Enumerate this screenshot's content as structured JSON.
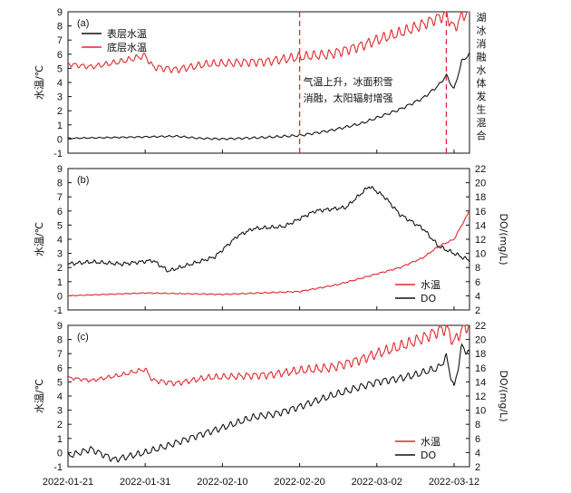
{
  "chart_data": [
    {
      "panel": "(a)",
      "type": "line",
      "ylabel": "水温/℃",
      "ylim": [
        -1,
        9
      ],
      "yticks": [
        -1,
        0,
        1,
        2,
        3,
        4,
        5,
        6,
        7,
        8,
        9
      ],
      "x_range": [
        "2022-01-21",
        "2022-03-14"
      ],
      "legend": "top-left",
      "series": [
        {
          "name": "表层水温",
          "color": "#111111",
          "axis": "left",
          "x": [
            "2022-01-21",
            "2022-01-26",
            "2022-01-31",
            "2022-02-04",
            "2022-02-07",
            "2022-02-10",
            "2022-02-15",
            "2022-02-20",
            "2022-02-24",
            "2022-02-28",
            "2022-03-02",
            "2022-03-05",
            "2022-03-08",
            "2022-03-10",
            "2022-03-11",
            "2022-03-12",
            "2022-03-13",
            "2022-03-14"
          ],
          "values": [
            0.05,
            0.1,
            0.15,
            0.2,
            0.05,
            0.0,
            0.1,
            0.25,
            0.6,
            1.1,
            1.5,
            2.1,
            2.9,
            3.8,
            4.5,
            3.5,
            5.5,
            6.0
          ]
        },
        {
          "name": "底层水温",
          "color": "#e0262b",
          "axis": "left",
          "x": [
            "2022-01-21",
            "2022-01-24",
            "2022-01-28",
            "2022-01-31",
            "2022-02-01",
            "2022-02-04",
            "2022-02-08",
            "2022-02-12",
            "2022-02-16",
            "2022-02-20",
            "2022-02-24",
            "2022-02-28",
            "2022-03-02",
            "2022-03-05",
            "2022-03-08",
            "2022-03-10",
            "2022-03-11",
            "2022-03-12",
            "2022-03-13",
            "2022-03-14"
          ],
          "values": [
            5.3,
            5.1,
            5.5,
            5.9,
            5.1,
            4.9,
            5.3,
            5.4,
            5.5,
            5.8,
            6.0,
            6.6,
            7.0,
            7.5,
            8.1,
            8.6,
            8.8,
            7.8,
            8.7,
            9.0
          ]
        }
      ],
      "annotations": [
        {
          "x": "2022-02-20",
          "text_lines": [
            "气温上升，冰面积雪",
            "消融，太阳辐射增强"
          ]
        },
        {
          "x": "2022-03-11",
          "text": "湖冰消融水体发生混合"
        }
      ]
    },
    {
      "panel": "(b)",
      "type": "line",
      "ylabel": "水温/℃",
      "y2label": "DO/(mg/L)",
      "ylim": [
        -1,
        9
      ],
      "yticks": [
        -1,
        0,
        1,
        2,
        3,
        4,
        5,
        6,
        7,
        8,
        9
      ],
      "y2lim": [
        2,
        22
      ],
      "y2ticks": [
        2,
        4,
        6,
        8,
        10,
        12,
        14,
        16,
        18,
        20,
        22
      ],
      "x_range": [
        "2022-01-21",
        "2022-03-14"
      ],
      "legend": "bottom-right",
      "series": [
        {
          "name": "水温",
          "color": "#e0262b",
          "axis": "left",
          "x": [
            "2022-01-21",
            "2022-01-31",
            "2022-02-10",
            "2022-02-20",
            "2022-02-25",
            "2022-03-01",
            "2022-03-05",
            "2022-03-08",
            "2022-03-10",
            "2022-03-12",
            "2022-03-13",
            "2022-03-14"
          ],
          "values": [
            0.0,
            0.2,
            0.1,
            0.3,
            0.8,
            1.4,
            2.0,
            2.7,
            3.5,
            4.0,
            5.0,
            6.0
          ]
        },
        {
          "name": "DO",
          "color": "#111111",
          "axis": "right",
          "x": [
            "2022-01-21",
            "2022-01-24",
            "2022-01-28",
            "2022-02-01",
            "2022-02-03",
            "2022-02-06",
            "2022-02-09",
            "2022-02-12",
            "2022-02-14",
            "2022-02-18",
            "2022-02-22",
            "2022-02-26",
            "2022-03-01",
            "2022-03-03",
            "2022-03-05",
            "2022-03-08",
            "2022-03-10",
            "2022-03-12",
            "2022-03-14"
          ],
          "values": [
            8.5,
            8.8,
            8.5,
            9.0,
            7.5,
            8.5,
            9.5,
            12.5,
            13.5,
            13.8,
            16.0,
            16.5,
            19.5,
            18.0,
            15.5,
            13.5,
            11.0,
            10.0,
            9.0
          ]
        }
      ]
    },
    {
      "panel": "(c)",
      "type": "line",
      "ylabel": "水温/℃",
      "y2label": "DO/(mg/L)",
      "ylim": [
        -1,
        9
      ],
      "yticks": [
        -1,
        0,
        1,
        2,
        3,
        4,
        5,
        6,
        7,
        8,
        9
      ],
      "y2lim": [
        2,
        22
      ],
      "y2ticks": [
        2,
        4,
        6,
        8,
        10,
        12,
        14,
        16,
        18,
        20,
        22
      ],
      "x_range": [
        "2022-01-21",
        "2022-03-14"
      ],
      "xticks": [
        "2022-01-21",
        "2022-01-31",
        "2022-02-10",
        "2022-02-20",
        "2022-03-02",
        "2022-03-12"
      ],
      "legend": "bottom-right",
      "series": [
        {
          "name": "水温",
          "color": "#e0262b",
          "axis": "left",
          "x": [
            "2022-01-21",
            "2022-01-24",
            "2022-01-28",
            "2022-01-31",
            "2022-02-01",
            "2022-02-04",
            "2022-02-08",
            "2022-02-12",
            "2022-02-16",
            "2022-02-20",
            "2022-02-24",
            "2022-02-28",
            "2022-03-02",
            "2022-03-05",
            "2022-03-08",
            "2022-03-10",
            "2022-03-11",
            "2022-03-12",
            "2022-03-13",
            "2022-03-14"
          ],
          "values": [
            5.3,
            5.1,
            5.5,
            5.9,
            5.1,
            4.9,
            5.3,
            5.4,
            5.5,
            5.8,
            6.0,
            6.6,
            7.0,
            7.5,
            8.1,
            8.6,
            8.8,
            7.8,
            8.7,
            9.0
          ]
        },
        {
          "name": "DO",
          "color": "#111111",
          "axis": "right",
          "x": [
            "2022-01-21",
            "2022-01-24",
            "2022-01-27",
            "2022-01-31",
            "2022-02-03",
            "2022-02-07",
            "2022-02-10",
            "2022-02-14",
            "2022-02-17",
            "2022-02-20",
            "2022-02-24",
            "2022-02-27",
            "2022-03-02",
            "2022-03-05",
            "2022-03-07",
            "2022-03-10",
            "2022-03-11",
            "2022-03-12",
            "2022-03-13",
            "2022-03-14"
          ],
          "values": [
            3.5,
            4.5,
            3.0,
            4.0,
            5.0,
            6.5,
            7.5,
            9.0,
            9.5,
            10.5,
            12.0,
            13.0,
            14.0,
            14.5,
            15.0,
            16.0,
            17.5,
            13.0,
            19.0,
            18.0
          ]
        }
      ]
    }
  ]
}
